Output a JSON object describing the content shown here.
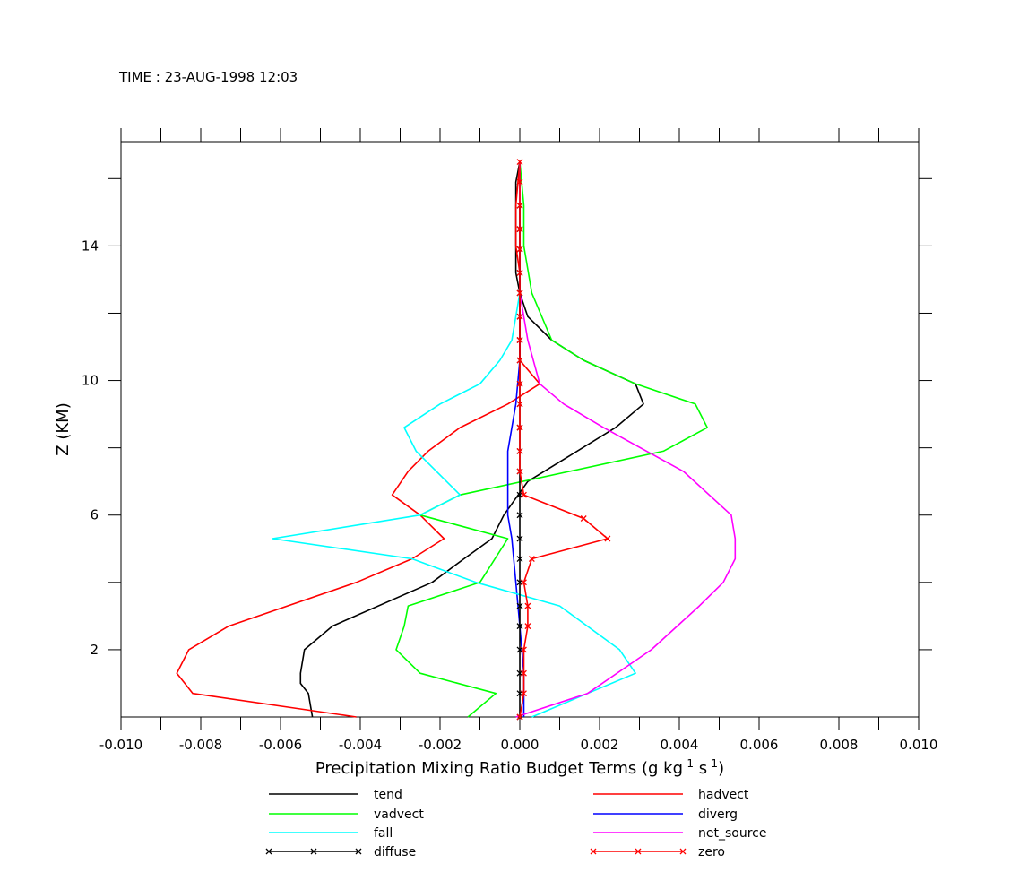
{
  "header": {
    "time_label": "TIME : 23-AUG-1998 12:03"
  },
  "chart_data": {
    "type": "line",
    "orientation": "vertical-profile",
    "title": "",
    "xlabel": "Precipitation Mixing Ratio Budget Terms (g kg",
    "xlabel_sup": "-1",
    "xlabel_mid": " s",
    "xlabel_sup2": "-1",
    "xlabel_end": ")",
    "ylabel": "Z (KM)",
    "xlim": [
      -0.01,
      0.01
    ],
    "ylim": [
      0.0,
      17.1
    ],
    "xticks": [
      "-0.010",
      "-0.008",
      "-0.006",
      "-0.004",
      "-0.002",
      "0.000",
      "0.002",
      "0.004",
      "0.006",
      "0.008",
      "0.010"
    ],
    "yticks": [
      "2",
      "6",
      "10",
      "14"
    ],
    "ytick_values": [
      2,
      6,
      10,
      14
    ],
    "grid": false,
    "legend_position": "bottom",
    "series": [
      {
        "name": "tend",
        "color": "#000000",
        "marker": "none",
        "x": [
          -0.0052,
          -0.0053,
          -0.0055,
          -0.0055,
          -0.0054,
          -0.0047,
          -0.0022,
          -0.0014,
          -0.0007,
          -0.0004,
          0.0002,
          0.0024,
          0.0031,
          0.0029,
          0.0016,
          0.0008,
          0.0002,
          0.0,
          -0.0001,
          -0.0001,
          -0.0001,
          -0.0001,
          -0.0001,
          0.0
        ],
        "y": [
          0.0,
          0.7,
          1.0,
          1.3,
          2.0,
          2.7,
          4.0,
          4.7,
          5.3,
          6.0,
          7.0,
          8.6,
          9.3,
          9.9,
          10.6,
          11.2,
          11.9,
          12.6,
          13.2,
          14.0,
          14.5,
          15.2,
          15.9,
          16.5
        ]
      },
      {
        "name": "hadvect",
        "color": "#ff0000",
        "marker": "none",
        "x": [
          -0.0041,
          -0.0082,
          -0.0086,
          -0.0083,
          -0.0073,
          -0.0041,
          -0.0027,
          -0.0019,
          -0.0025,
          -0.0032,
          -0.0028,
          -0.0023,
          -0.0015,
          -0.0003,
          0.0005,
          0.0,
          0.0,
          0.0,
          -0.0001,
          -0.0001,
          -0.0001,
          0.0
        ],
        "y": [
          0.0,
          0.7,
          1.3,
          2.0,
          2.7,
          4.0,
          4.7,
          5.3,
          6.0,
          6.6,
          7.3,
          7.9,
          8.6,
          9.3,
          9.9,
          10.6,
          12.6,
          13.2,
          14.0,
          14.5,
          15.2,
          16.5
        ]
      },
      {
        "name": "vadvect",
        "color": "#00ff00",
        "marker": "none",
        "x": [
          -0.0013,
          -0.0006,
          -0.0025,
          -0.0031,
          -0.0029,
          -0.0028,
          -0.001,
          -0.0003,
          -0.0025,
          -0.0015,
          0.0036,
          0.0047,
          0.0044,
          0.0029,
          0.0016,
          0.0008,
          0.0003,
          0.0001,
          0.0001,
          0.0001,
          0.0
        ],
        "y": [
          0.0,
          0.7,
          1.3,
          2.0,
          2.7,
          3.3,
          4.0,
          5.3,
          6.0,
          6.6,
          7.9,
          8.6,
          9.3,
          9.9,
          10.6,
          11.2,
          12.6,
          14.0,
          14.5,
          15.2,
          16.5
        ]
      },
      {
        "name": "diverg",
        "color": "#0000ff",
        "marker": "none",
        "x": [
          0.0001,
          0.0001,
          0.0,
          -0.0001,
          -0.0002,
          -0.0003,
          -0.0003,
          -0.0003,
          -0.0003,
          -0.0002,
          -0.0001,
          0.0,
          0.0,
          0.0,
          0.0
        ],
        "y": [
          0.0,
          1.3,
          2.7,
          4.0,
          5.3,
          6.0,
          6.6,
          7.3,
          7.9,
          8.6,
          9.3,
          10.6,
          12.6,
          14.0,
          16.5
        ]
      },
      {
        "name": "fall",
        "color": "#00ffff",
        "marker": "none",
        "x": [
          0.0003,
          0.0017,
          0.0029,
          0.0025,
          0.001,
          -0.0011,
          -0.0027,
          -0.0062,
          -0.0025,
          -0.0015,
          -0.0026,
          -0.0029,
          -0.002,
          -0.001,
          -0.0005,
          -0.0002,
          0.0,
          0.0,
          0.0
        ],
        "y": [
          0.0,
          0.7,
          1.3,
          2.0,
          3.3,
          4.0,
          4.7,
          5.3,
          6.0,
          6.6,
          7.9,
          8.6,
          9.3,
          9.9,
          10.6,
          11.2,
          12.6,
          14.0,
          16.5
        ]
      },
      {
        "name": "net_source",
        "color": "#ff00ff",
        "marker": "none",
        "x": [
          -0.0001,
          0.0017,
          0.0033,
          0.0045,
          0.0051,
          0.0054,
          0.0054,
          0.0053,
          0.0041,
          0.0021,
          0.0011,
          0.0005,
          0.0002,
          0.0,
          0.0,
          0.0
        ],
        "y": [
          0.0,
          0.7,
          2.0,
          3.3,
          4.0,
          4.7,
          5.3,
          6.0,
          7.3,
          8.6,
          9.3,
          9.9,
          11.2,
          12.6,
          14.0,
          16.5
        ]
      },
      {
        "name": "diffuse",
        "color": "#000000",
        "marker": "x",
        "x": [
          0.0,
          0.0,
          0.0,
          0.0,
          0.0,
          0.0,
          0.0,
          0.0,
          0.0,
          0.0,
          0.0,
          0.0,
          0.0,
          0.0,
          0.0,
          0.0,
          0.0,
          0.0,
          0.0,
          0.0,
          0.0,
          0.0,
          0.0,
          0.0
        ],
        "y": [
          0.0,
          0.7,
          1.3,
          2.0,
          2.7,
          3.3,
          4.0,
          4.7,
          5.3,
          6.0,
          6.6,
          7.3,
          7.9,
          8.6,
          9.3,
          9.9,
          10.6,
          11.2,
          11.9,
          12.6,
          13.2,
          13.9,
          14.5,
          15.2
        ]
      },
      {
        "name": "zero",
        "color": "#ff0000",
        "marker": "x",
        "x": [
          0.0,
          0.0001,
          0.0001,
          0.0001,
          0.0002,
          0.0002,
          0.0001,
          0.0003,
          0.0022,
          0.0016,
          0.0001,
          0.0,
          0.0,
          0.0,
          0.0,
          0.0,
          0.0,
          0.0,
          0.0,
          0.0,
          0.0,
          0.0,
          0.0,
          0.0,
          0.0,
          0.0
        ],
        "y": [
          0.0,
          0.7,
          1.3,
          2.0,
          2.7,
          3.3,
          4.0,
          4.7,
          5.3,
          5.9,
          6.6,
          7.3,
          7.9,
          8.6,
          9.3,
          9.9,
          10.6,
          11.2,
          11.9,
          12.6,
          13.2,
          13.9,
          14.5,
          15.2,
          15.9,
          16.5
        ]
      }
    ],
    "legend": [
      {
        "name": "tend",
        "color": "#000000",
        "marker": "none",
        "column": 0
      },
      {
        "name": "vadvect",
        "color": "#00ff00",
        "marker": "none",
        "column": 0
      },
      {
        "name": "fall",
        "color": "#00ffff",
        "marker": "none",
        "column": 0
      },
      {
        "name": "diffuse",
        "color": "#000000",
        "marker": "x",
        "column": 0
      },
      {
        "name": "hadvect",
        "color": "#ff0000",
        "marker": "none",
        "column": 1
      },
      {
        "name": "diverg",
        "color": "#0000ff",
        "marker": "none",
        "column": 1
      },
      {
        "name": "net_source",
        "color": "#ff00ff",
        "marker": "none",
        "column": 1
      },
      {
        "name": "zero",
        "color": "#ff0000",
        "marker": "x",
        "column": 1
      }
    ]
  }
}
